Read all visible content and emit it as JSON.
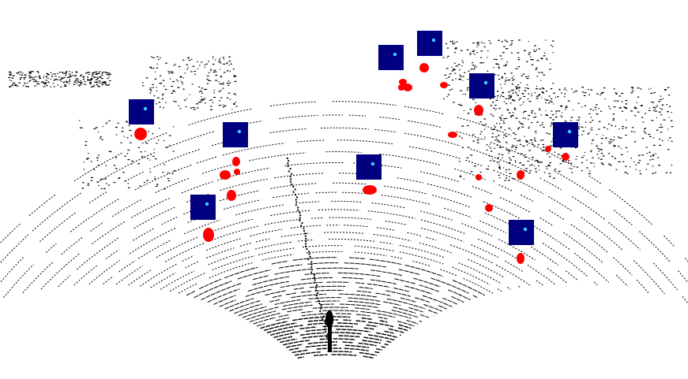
{
  "colors": {
    "background": "#ffffff",
    "scan_points": "#000000",
    "detection": "#ff0000",
    "heatmap_patch": "#000080",
    "heatmap_peak": "#3fd0ff"
  },
  "scene": {
    "type": "lidar-bird-eye-view",
    "patch_count": 10,
    "detection_cluster_count": 22
  }
}
